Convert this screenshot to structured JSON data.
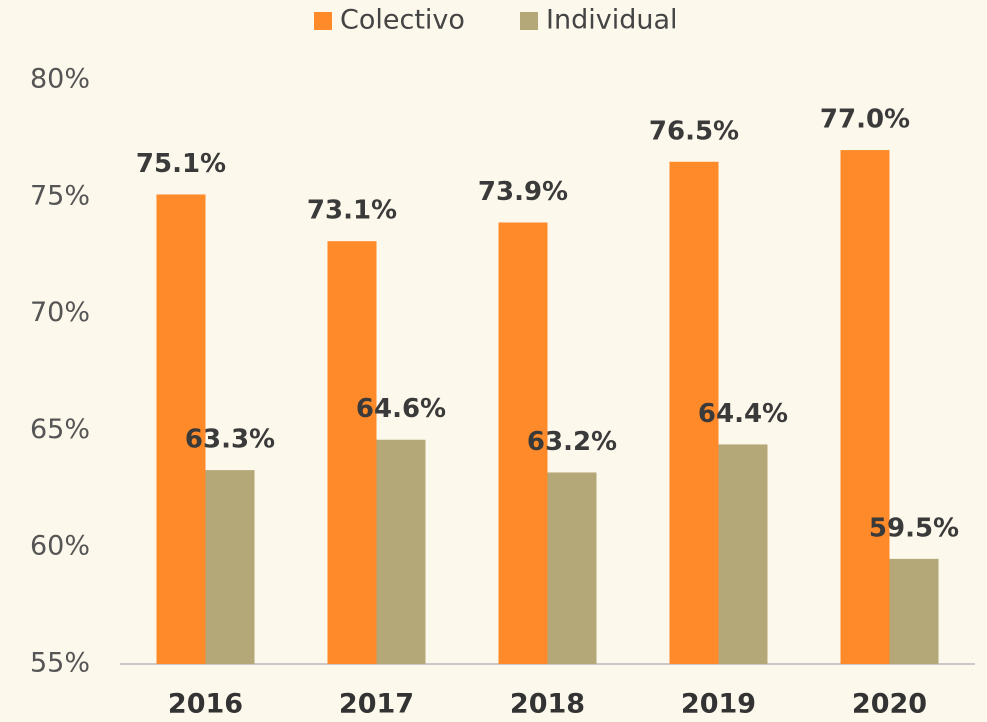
{
  "chart_data": {
    "type": "bar",
    "categories": [
      "2016",
      "2017",
      "2018",
      "2019",
      "2020"
    ],
    "series": [
      {
        "name": "Colectivo",
        "color": "#ff8a2a",
        "values": [
          75.1,
          73.1,
          73.9,
          76.5,
          77.0
        ],
        "value_labels": [
          "75.1%",
          "73.1%",
          "73.9%",
          "76.5%",
          "77.0%"
        ]
      },
      {
        "name": "Individual",
        "color": "#b5a878",
        "values": [
          63.3,
          64.6,
          63.2,
          64.4,
          59.5
        ],
        "value_labels": [
          "63.3%",
          "64.6%",
          "63.2%",
          "64.4%",
          "59.5%"
        ]
      }
    ],
    "ylim": [
      55,
      80
    ],
    "yticks": [
      {
        "value": 55,
        "label": "55%"
      },
      {
        "value": 60,
        "label": "60%"
      },
      {
        "value": 65,
        "label": "65%"
      },
      {
        "value": 70,
        "label": "70%"
      },
      {
        "value": 75,
        "label": "75%"
      },
      {
        "value": 80,
        "label": "80%"
      }
    ],
    "legend": "top"
  }
}
